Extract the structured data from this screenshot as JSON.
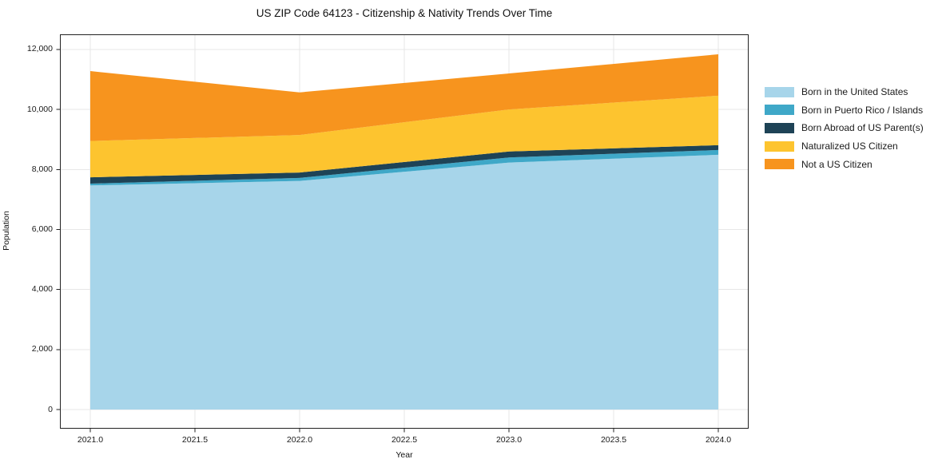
{
  "chart_data": {
    "type": "area",
    "stacked": true,
    "title": "US ZIP Code 64123 - Citizenship & Nativity Trends Over Time",
    "xlabel": "Year",
    "ylabel": "Population",
    "x": [
      2021,
      2022,
      2023,
      2024
    ],
    "series": [
      {
        "name": "Born in the United States",
        "color": "#a7d5ea",
        "values": [
          7470,
          7620,
          8230,
          8490
        ]
      },
      {
        "name": "Born in Puerto Rico / Islands",
        "color": "#3fa8c8",
        "values": [
          60,
          100,
          170,
          160
        ]
      },
      {
        "name": "Born Abroad of US Parent(s)",
        "color": "#1e4356",
        "values": [
          210,
          180,
          200,
          160
        ]
      },
      {
        "name": "Naturalized US Citizen",
        "color": "#fdc42f",
        "values": [
          1210,
          1250,
          1400,
          1650
        ]
      },
      {
        "name": "Not a US Citizen",
        "color": "#f7941e",
        "values": [
          2330,
          1420,
          1200,
          1380
        ]
      }
    ],
    "stacked_totals": [
      11280,
      10570,
      11200,
      11840
    ],
    "xlim": [
      2020.855,
      2024.145
    ],
    "ylim": [
      -638,
      12505
    ],
    "xticks": [
      2021.0,
      2021.5,
      2022.0,
      2022.5,
      2023.0,
      2023.5,
      2024.0
    ],
    "xtick_labels": [
      "2021.0",
      "2021.5",
      "2022.0",
      "2022.5",
      "2023.0",
      "2023.5",
      "2024.0"
    ],
    "yticks": [
      0,
      2000,
      4000,
      6000,
      8000,
      10000,
      12000
    ],
    "ytick_labels": [
      "0",
      "2,000",
      "4,000",
      "6,000",
      "8,000",
      "10,000",
      "12,000"
    ],
    "grid": true,
    "grid_color": "#e7e7e7",
    "spine_color": "#222222",
    "legend_position": "right-outside"
  }
}
